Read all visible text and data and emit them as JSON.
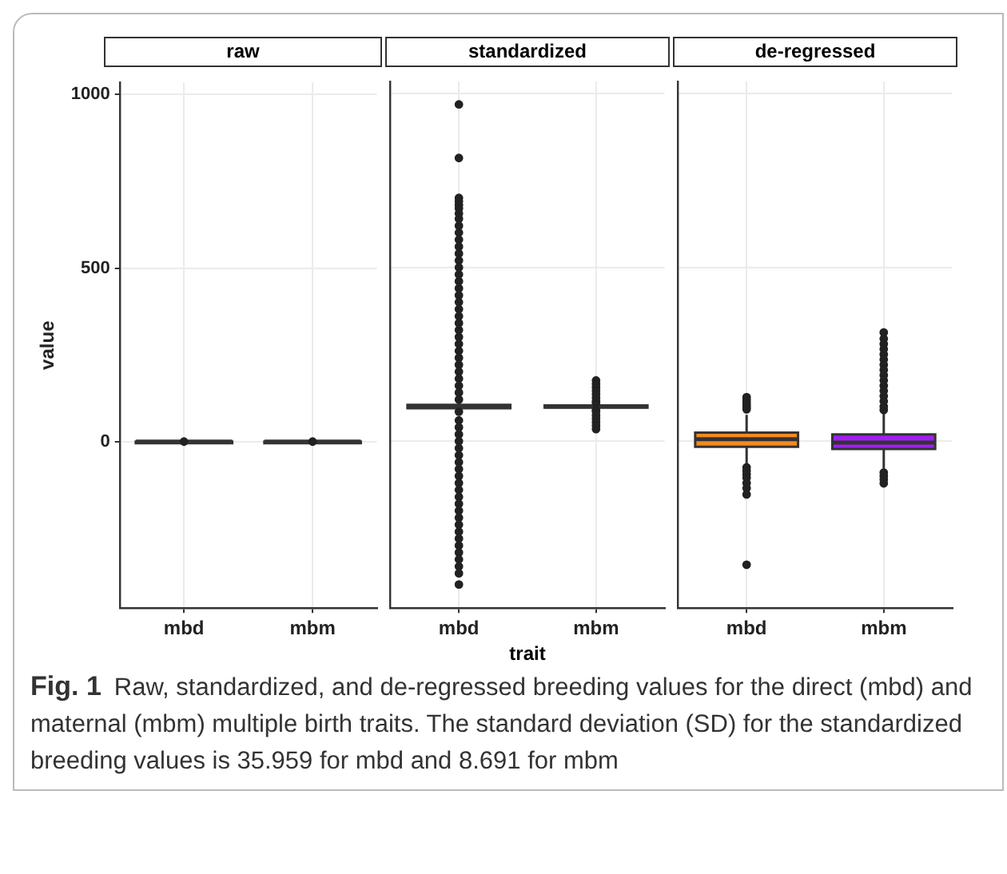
{
  "chart_data": [
    {
      "type": "box",
      "title": "raw",
      "ylabel": "value",
      "categories": [
        "mbd",
        "mbm"
      ],
      "colors": [
        "#333333",
        "#333333"
      ],
      "boxes": [
        {
          "low": 0,
          "q1": 0,
          "median": 0,
          "q3": 0,
          "high": 0,
          "outliers": [
            0
          ]
        },
        {
          "low": 0,
          "q1": 0,
          "median": 0,
          "q3": 0,
          "high": 0,
          "outliers": [
            0
          ]
        }
      ],
      "ylim": [
        -480,
        1035
      ],
      "yticks": [
        0,
        500,
        1000
      ],
      "grid": true
    },
    {
      "type": "box",
      "title": "standardized",
      "xlabel": "trait",
      "categories": [
        "mbd",
        "mbm"
      ],
      "colors": [
        "#333333",
        "#333333"
      ],
      "boxes": [
        {
          "low": 90,
          "q1": 95,
          "median": 100,
          "q3": 105,
          "high": 112,
          "outliers": [
            969,
            815,
            700,
            690,
            680,
            670,
            655,
            640,
            620,
            600,
            580,
            560,
            540,
            520,
            500,
            480,
            460,
            440,
            420,
            400,
            380,
            360,
            340,
            320,
            300,
            280,
            260,
            240,
            220,
            200,
            180,
            160,
            140,
            120,
            85,
            60,
            40,
            20,
            0,
            -20,
            -40,
            -60,
            -80,
            -100,
            -120,
            -140,
            -160,
            -180,
            -200,
            -220,
            -240,
            -260,
            -280,
            -300,
            -320,
            -340,
            -360,
            -380,
            -412
          ]
        },
        {
          "low": 95,
          "q1": 97,
          "median": 100,
          "q3": 103,
          "high": 106,
          "outliers": [
            175,
            165,
            155,
            145,
            135,
            125,
            115,
            110,
            90,
            85,
            75,
            65,
            55,
            45,
            35
          ]
        }
      ],
      "ylim": [
        -480,
        1035
      ],
      "yticks": [
        0,
        500,
        1000
      ],
      "grid": true,
      "tick_labels": "x"
    },
    {
      "type": "box",
      "title": "de-regressed",
      "categories": [
        "mbd",
        "mbm"
      ],
      "colors": [
        "#f58a1f",
        "#a020f0"
      ],
      "boxes": [
        {
          "low": -70,
          "q1": -16,
          "median": 6,
          "q3": 25,
          "high": 76,
          "outliers": [
            127,
            120,
            112,
            105,
            98,
            92,
            -75,
            -85,
            -95,
            -105,
            -120,
            -135,
            -153,
            -355
          ]
        },
        {
          "low": -78,
          "q1": -22,
          "median": -4,
          "q3": 20,
          "high": 83,
          "outliers": [
            313,
            295,
            280,
            265,
            250,
            235,
            220,
            205,
            190,
            175,
            160,
            145,
            130,
            115,
            100,
            90,
            -90,
            -100,
            -110,
            -121
          ]
        }
      ],
      "ylim": [
        -480,
        1035
      ],
      "yticks": [
        0,
        500,
        1000
      ],
      "grid": true,
      "tick_labels": "x",
      "annotations": [
        "Fig. 1",
        "Raw, standardized, and de-regressed breeding values for the direct (mbd) and maternal (mbm) multiple birth traits. The standard deviation (SD) for the standardized breeding values is 35.959 for mbd and 8.691 for mbm"
      ]
    }
  ]
}
